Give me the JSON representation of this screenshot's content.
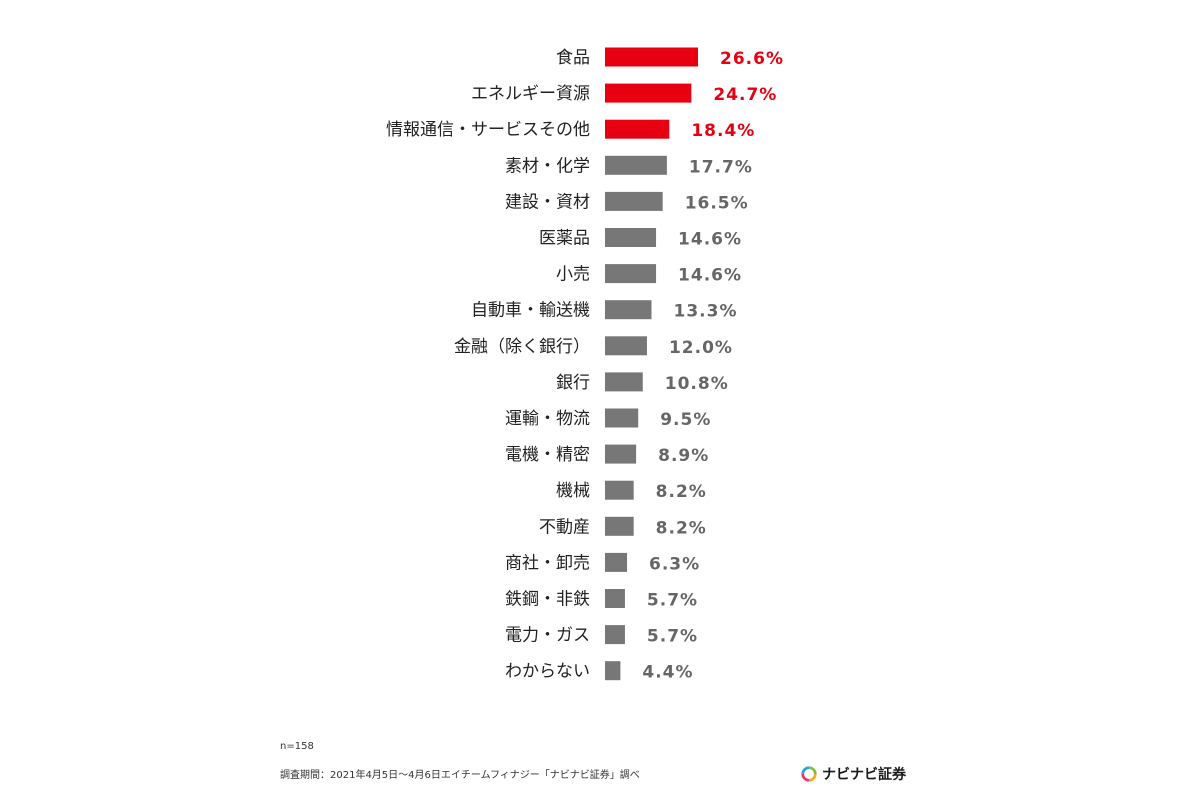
{
  "chart_data": {
    "type": "bar",
    "orientation": "horizontal",
    "categories": [
      "食品",
      "エネルギー資源",
      "情報通信・サービスその他",
      "素材・化学",
      "建設・資材",
      "医薬品",
      "小売",
      "自動車・輸送機",
      "金融（除く銀行）",
      "銀行",
      "運輸・物流",
      "電機・精密",
      "機械",
      "不動産",
      "商社・卸売",
      "鉄鋼・非鉄",
      "電力・ガス",
      "わからない"
    ],
    "values": [
      26.6,
      24.7,
      18.4,
      17.7,
      16.5,
      14.6,
      14.6,
      13.3,
      12.0,
      10.8,
      9.5,
      8.9,
      8.2,
      8.2,
      6.3,
      5.7,
      5.7,
      4.4
    ],
    "value_labels": [
      "26.6%",
      "24.7%",
      "18.4%",
      "17.7%",
      "16.5%",
      "14.6%",
      "14.6%",
      "13.3%",
      "12.0%",
      "10.8%",
      "9.5%",
      "8.9%",
      "8.2%",
      "8.2%",
      "6.3%",
      "5.7%",
      "5.7%",
      "4.4%"
    ],
    "highlight_count": 3,
    "colors": {
      "highlight": "#e60012",
      "default": "#777777",
      "highlight_label": "#e60012",
      "default_label": "#666666"
    },
    "xlim": [
      0,
      26.6
    ],
    "grid": false,
    "legend": "none"
  },
  "footer": {
    "sample_size": "n=158",
    "survey_period": "調査期間：2021年4月5日〜4月6日エイチームフィナジー「ナビナビ証券」調べ"
  },
  "logo": {
    "text": "ナビナビ証券",
    "icon": "navinavi-ring-logo-icon"
  }
}
